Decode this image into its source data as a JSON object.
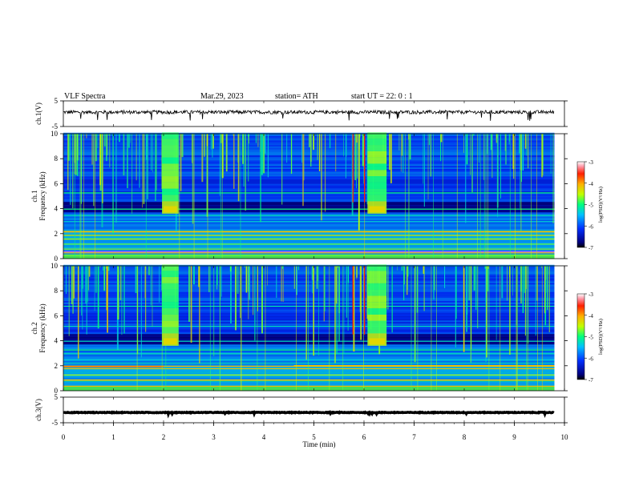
{
  "header": {
    "title": "VLF  Spectra",
    "date": "Mar.29, 2023",
    "station": "station= ATH",
    "start_ut": "start  UT  =    22: 0   : 1"
  },
  "colorbar": {
    "label": "log(PSD)(V²/Hz)",
    "ticks": [
      "-3",
      "-4",
      "-5",
      "-6",
      "-7"
    ]
  },
  "colors": {
    "background": "#00007f",
    "trace": "#000000"
  },
  "chart_data": [
    {
      "type": "line",
      "name": "ch1-waveform",
      "ylabel": "ch.1(V)",
      "ylim": [
        -5,
        5
      ],
      "yticks": [
        "5",
        "-5"
      ],
      "baseline_v": 0.6
    },
    {
      "type": "heatmap",
      "name": "ch1-spectrogram",
      "ylabel": "ch.1\nFrequency  (kHz)",
      "ylim": [
        0,
        10
      ],
      "yticks": [
        "10",
        "8",
        "6",
        "4",
        "2",
        "0"
      ],
      "xlim": [
        0,
        10
      ],
      "data_extent_min": 9.8,
      "bursts": [
        {
          "t_start": 1.97,
          "t_end": 2.3,
          "f_low": 3.6,
          "f_high": 10
        },
        {
          "t_start": 6.07,
          "t_end": 6.45,
          "f_low": 3.6,
          "f_high": 10
        }
      ],
      "colorbar_range": [
        -7,
        -3
      ]
    },
    {
      "type": "heatmap",
      "name": "ch2-spectrogram",
      "ylabel": "ch.2\nFrequency  (kHz)",
      "ylim": [
        0,
        10
      ],
      "yticks": [
        "10",
        "8",
        "6",
        "4",
        "2",
        "0"
      ],
      "xlim": [
        0,
        10
      ],
      "data_extent_min": 9.8,
      "bursts": [
        {
          "t_start": 1.97,
          "t_end": 2.3,
          "f_low": 3.6,
          "f_high": 10
        },
        {
          "t_start": 6.07,
          "t_end": 6.45,
          "f_low": 3.6,
          "f_high": 10
        }
      ],
      "colorbar_range": [
        -7,
        -3
      ]
    },
    {
      "type": "line",
      "name": "ch3-waveform",
      "ylabel": "ch.3(V)",
      "ylim": [
        -5,
        5
      ],
      "yticks": [
        "5",
        "-5"
      ],
      "baseline_v": -1.0
    }
  ],
  "xaxis": {
    "label": "Time  (min)",
    "ticks": [
      "0",
      "1",
      "2",
      "3",
      "4",
      "5",
      "6",
      "7",
      "8",
      "9",
      "10"
    ],
    "xlim": [
      0,
      10
    ]
  }
}
